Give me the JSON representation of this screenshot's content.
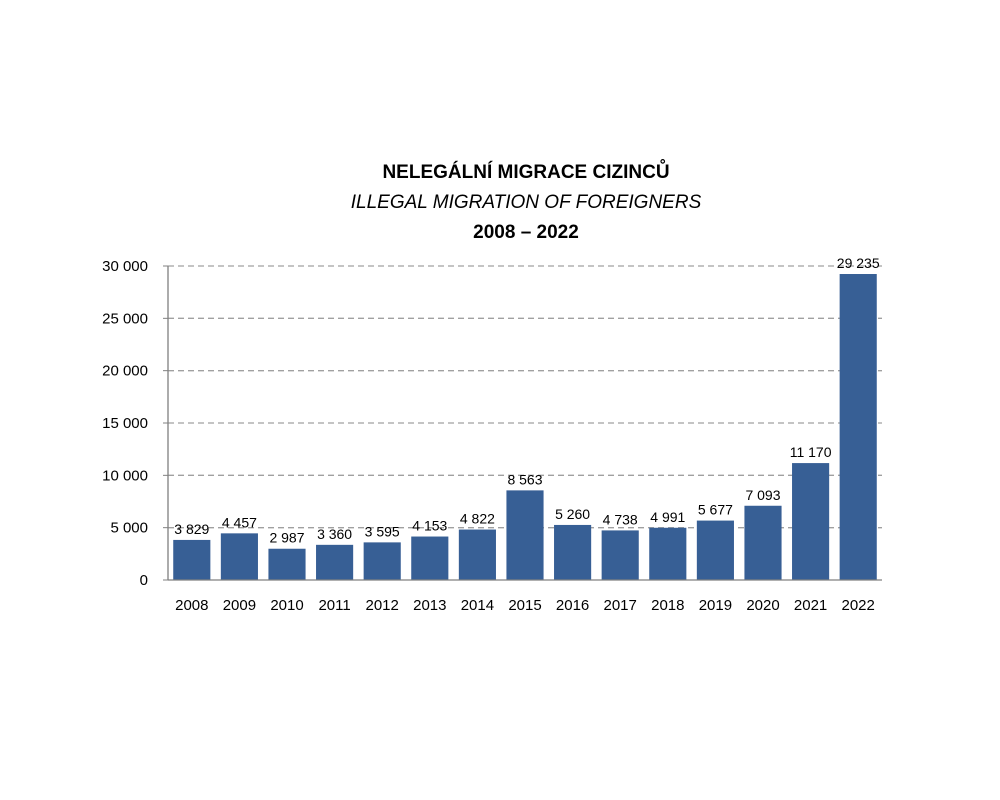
{
  "chart_data": {
    "type": "bar",
    "title": "NELEGÁLNÍ MIGRACE CIZINCŮ",
    "subtitle": "ILLEGAL MIGRATION OF FOREIGNERS",
    "period": "2008 – 2022",
    "categories": [
      "2008",
      "2009",
      "2010",
      "2011",
      "2012",
      "2013",
      "2014",
      "2015",
      "2016",
      "2017",
      "2018",
      "2019",
      "2020",
      "2021",
      "2022"
    ],
    "values": [
      3829,
      4457,
      2987,
      3360,
      3595,
      4153,
      4822,
      8563,
      5260,
      4738,
      4991,
      5677,
      7093,
      11170,
      29235
    ],
    "value_labels": [
      "3 829",
      "4 457",
      "2 987",
      "3 360",
      "3 595",
      "4 153",
      "4 822",
      "8 563",
      "5 260",
      "4 738",
      "4 991",
      "5 677",
      "7 093",
      "11 170",
      "29 235"
    ],
    "yticks": [
      0,
      5000,
      10000,
      15000,
      20000,
      25000,
      30000
    ],
    "ytick_labels": [
      "0",
      "5 000",
      "10 000",
      "15 000",
      "20 000",
      "25 000",
      "30 000"
    ],
    "ylim": [
      0,
      30000
    ],
    "grid": true,
    "legend": "none",
    "bar_color": "#375f95"
  }
}
